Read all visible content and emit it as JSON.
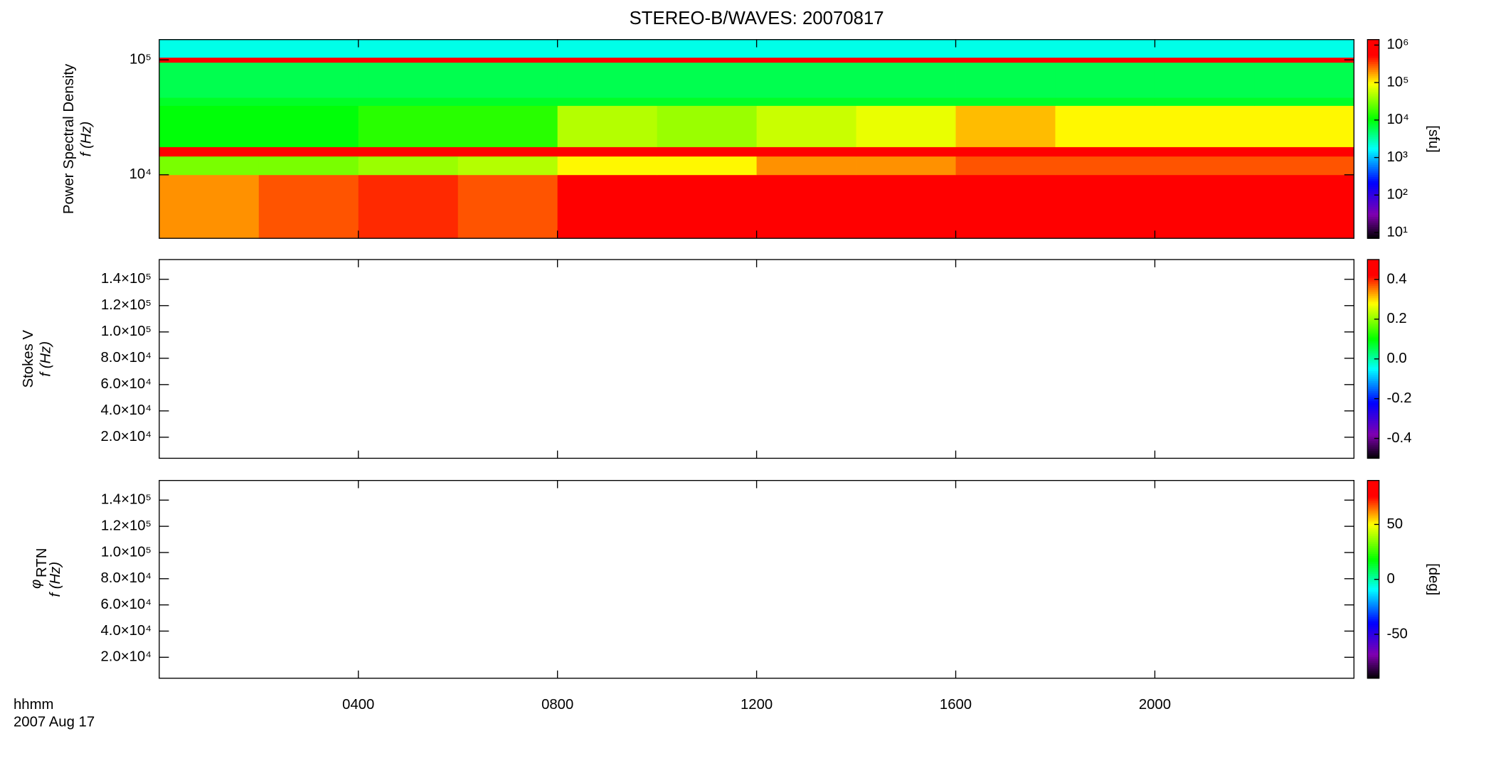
{
  "chart_data": [
    {
      "type": "heatmap",
      "title": "STEREO-B/WAVES: 20070817",
      "ylabel": "Power Spectral Density",
      "ylabel2": "f (Hz)",
      "xlim": [
        0,
        24
      ],
      "ylim": [
        2800,
        150000
      ],
      "log_y": true,
      "yticks": [
        {
          "value": 10000,
          "label": "10⁴"
        },
        {
          "value": 100000,
          "label": "10⁵"
        }
      ],
      "x": [
        0,
        2,
        4,
        6,
        8,
        10,
        12,
        14,
        16,
        18,
        20,
        22
      ],
      "y": [
        2800,
        10000,
        14500,
        17500,
        40000,
        47000,
        95000,
        105000
      ],
      "z": [
        [
          200000,
          300000,
          400000,
          300000,
          1000000,
          600000,
          1000000,
          1000000,
          1000000,
          1000000,
          1000000,
          1000000
        ],
        [
          30000,
          30000,
          40000,
          50000,
          100000,
          100000,
          200000,
          200000,
          300000,
          300000,
          300000,
          300000
        ],
        [
          1000000,
          1000000,
          1000000,
          1000000,
          1000000,
          1000000,
          1000000,
          1000000,
          1000000,
          1000000,
          1000000,
          1000000
        ],
        [
          10000,
          10000,
          15000,
          15000,
          50000,
          40000,
          60000,
          80000,
          150000,
          100000,
          100000,
          100000
        ],
        [
          8000,
          8000,
          8000,
          8000,
          8000,
          8000,
          8000,
          8000,
          8000,
          8000,
          8000,
          8000
        ],
        [
          6000,
          6000,
          6000,
          6000,
          6000,
          6000,
          6000,
          6000,
          6000,
          6000,
          6000,
          6000
        ],
        [
          800000,
          800000,
          800000,
          800000,
          800000,
          800000,
          800000,
          800000,
          800000,
          800000,
          800000,
          800000
        ],
        [
          2000,
          2000,
          2000,
          2000,
          2000,
          2000,
          2000,
          2000,
          2000,
          2000,
          2000,
          2000
        ]
      ],
      "zlim": [
        7,
        1400000
      ],
      "log_z": true,
      "zticks": [
        {
          "value": 10,
          "label": "10¹"
        },
        {
          "value": 100,
          "label": "10²"
        },
        {
          "value": 1000,
          "label": "10³"
        },
        {
          "value": 10000,
          "label": "10⁴"
        },
        {
          "value": 100000,
          "label": "10⁵"
        },
        {
          "value": 1000000,
          "label": "10⁶"
        }
      ],
      "zlabel": "[sfu]"
    },
    {
      "type": "heatmap",
      "ylabel": "Stokes V",
      "ylabel2": "f (Hz)",
      "xlim": [
        0,
        24
      ],
      "ylim": [
        4000,
        155000
      ],
      "log_y": false,
      "yticks": [
        {
          "value": 20000,
          "label": "2.0×10⁴"
        },
        {
          "value": 40000,
          "label": "4.0×10⁴"
        },
        {
          "value": 60000,
          "label": "6.0×10⁴"
        },
        {
          "value": 80000,
          "label": "8.0×10⁴"
        },
        {
          "value": 100000,
          "label": "1.0×10⁵"
        },
        {
          "value": 120000,
          "label": "1.2×10⁵"
        },
        {
          "value": 140000,
          "label": "1.4×10⁵"
        }
      ],
      "zlim": [
        -0.5,
        0.5
      ],
      "log_z": false,
      "zticks": [
        -0.4,
        -0.2,
        {
          "value": 0,
          "label": "0.0"
        },
        0.2,
        0.4
      ]
    },
    {
      "type": "heatmap",
      "ylabel": "φ",
      "ylabel_sub": "RTN",
      "ylabel2": "f (Hz)",
      "xlim": [
        0,
        24
      ],
      "ylim": [
        4000,
        155000
      ],
      "log_y": false,
      "yticks": [
        {
          "value": 20000,
          "label": "2.0×10⁴"
        },
        {
          "value": 40000,
          "label": "4.0×10⁴"
        },
        {
          "value": 60000,
          "label": "6.0×10⁴"
        },
        {
          "value": 80000,
          "label": "8.0×10⁴"
        },
        {
          "value": 100000,
          "label": "1.0×10⁵"
        },
        {
          "value": 120000,
          "label": "1.2×10⁵"
        },
        {
          "value": 140000,
          "label": "1.4×10⁵"
        }
      ],
      "zlim": [
        -90,
        90
      ],
      "log_z": false,
      "zticks": [
        -50,
        0,
        50
      ],
      "zlabel": "[deg]",
      "xticks": [
        {
          "value": 4,
          "label": "0400"
        },
        {
          "value": 8,
          "label": "0800"
        },
        {
          "value": 12,
          "label": "1200"
        },
        {
          "value": 16,
          "label": "1600"
        },
        {
          "value": 20,
          "label": "2000"
        }
      ],
      "xlabel": "hhmm",
      "date_label": "2007 Aug 17"
    }
  ]
}
